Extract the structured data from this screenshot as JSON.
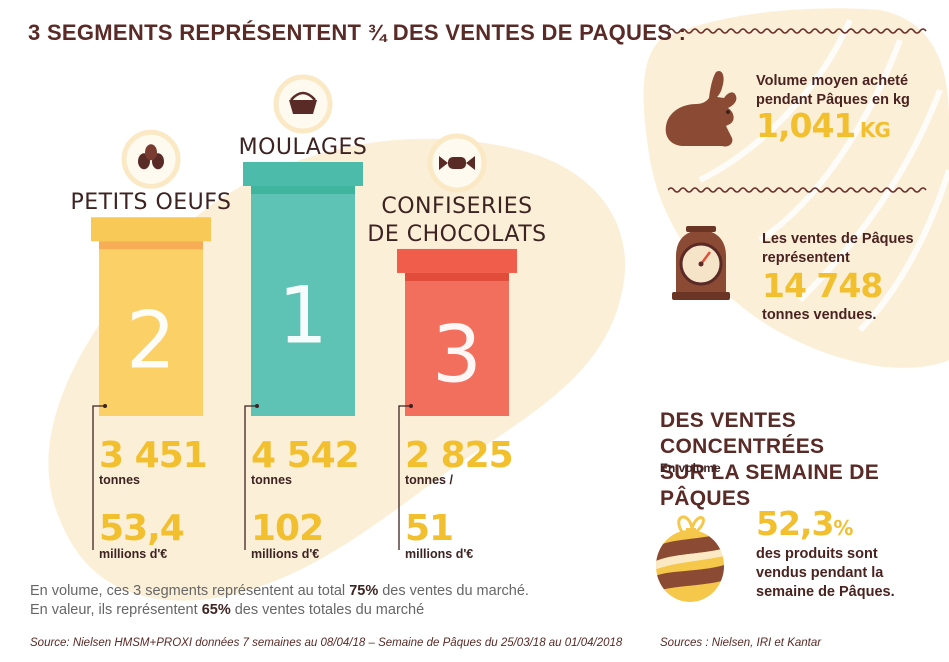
{
  "main_title": "3 SEGMENTS REPRÉSENTENT ¾ DES VENTES DE PAQUES :",
  "chart_data": {
    "type": "bar",
    "categories": [
      "PETITS OEUFS",
      "MOULAGES",
      "CONFISERIES DE CHOCOLATS"
    ],
    "category_lines": [
      [
        "PETITS OEUFS"
      ],
      [
        "MOULAGES"
      ],
      [
        "CONFISERIES",
        "DE CHOCOLATS"
      ]
    ],
    "ranks": [
      "2",
      "1",
      "3"
    ],
    "series": [
      {
        "values": [
          3451,
          4542,
          2825
        ],
        "labels": [
          "3 451",
          "4 542",
          "2 825"
        ],
        "units": [
          "tonnes",
          "tonnes",
          "tonnes /"
        ]
      },
      {
        "values": [
          53.4,
          102,
          51
        ],
        "labels": [
          "53,4",
          "102",
          "51"
        ],
        "units": [
          "millions d'€",
          "millions d'€",
          "millions d'€"
        ]
      }
    ],
    "colors": [
      "#fbd066",
      "#5ec3b5",
      "#f26f5e"
    ],
    "cap_colors": [
      "#f8c957",
      "#4dbba9",
      "#f05d4a"
    ],
    "cap_stripes": [
      "#f6ad56",
      "#3fb59e",
      "#e14c3b"
    ],
    "icons": [
      "eggs-icon",
      "basket-icon",
      "candy-icon"
    ]
  },
  "footnote": {
    "line1_pre": "En volume, ces 3 segments représentent au total ",
    "line1_bold": "75%",
    "line1_post": " des ventes du marché.",
    "line2_pre": "En valeur, ils représentent ",
    "line2_bold": "65%",
    "line2_post": " des ventes totales du marché"
  },
  "source_left": "Source: Nielsen HMSM+PROXI données 7 semaines au 08/04/18 – Semaine de Pâques du 25/03/18 au 01/04/2018",
  "right": {
    "stat1_line1": "Volume moyen acheté",
    "stat1_line2": "pendant Pâques en kg",
    "stat1_value": "1,041",
    "stat1_unit": "KG",
    "stat2_line1": "Les ventes de Pâques",
    "stat2_line2": "représentent",
    "stat2_value": "14 748",
    "stat2_line3": "tonnes vendues.",
    "section_title_1": "DES VENTES CONCENTRÉES",
    "section_title_2": "SUR LA SEMAINE DE PÂQUES",
    "section_sub": "En volume",
    "stat3_value": "52,3",
    "stat3_unit": "%",
    "stat3_line1": "des produits sont",
    "stat3_line2": "vendus pendant la",
    "stat3_line3": "semaine de Pâques.",
    "source": "Sources : Nielsen, IRI et Kantar",
    "icons": [
      "rabbit-icon",
      "scale-icon",
      "easter-egg-icon"
    ]
  }
}
